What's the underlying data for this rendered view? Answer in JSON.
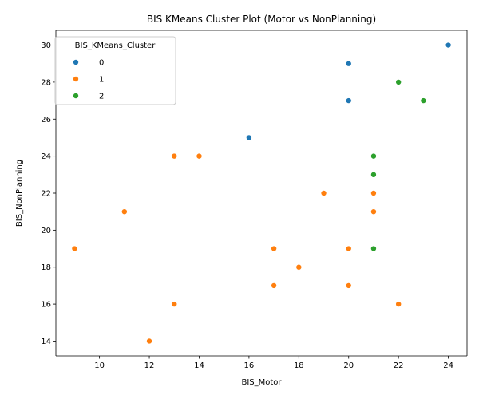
{
  "chart_data": {
    "type": "scatter",
    "title": "BIS KMeans Cluster Plot (Motor vs NonPlanning)",
    "xlabel": "BIS_Motor",
    "ylabel": "BIS_NonPlanning",
    "xlim": [
      8.25,
      24.75
    ],
    "ylim": [
      13.2,
      30.8
    ],
    "xticks": [
      10,
      12,
      14,
      16,
      18,
      20,
      22,
      24
    ],
    "yticks": [
      14,
      16,
      18,
      20,
      22,
      24,
      26,
      28,
      30
    ],
    "grid": false,
    "legend": {
      "title": "BIS_KMeans_Cluster",
      "placement": "top-left"
    },
    "series": [
      {
        "name": "0",
        "color": "#1f77b4",
        "points": [
          [
            24,
            30
          ],
          [
            20,
            29
          ],
          [
            20,
            27
          ],
          [
            16,
            25
          ]
        ]
      },
      {
        "name": "1",
        "color": "#ff7f0e",
        "points": [
          [
            13,
            24
          ],
          [
            14,
            24
          ],
          [
            19,
            22
          ],
          [
            21,
            22
          ],
          [
            11,
            21
          ],
          [
            21,
            21
          ],
          [
            9,
            19
          ],
          [
            17,
            19
          ],
          [
            20,
            19
          ],
          [
            18,
            18
          ],
          [
            17,
            17
          ],
          [
            20,
            17
          ],
          [
            13,
            16
          ],
          [
            22,
            16
          ],
          [
            12,
            14
          ]
        ]
      },
      {
        "name": "2",
        "color": "#2ca02c",
        "points": [
          [
            22,
            28
          ],
          [
            23,
            27
          ],
          [
            21,
            24
          ],
          [
            21,
            23
          ],
          [
            21,
            19
          ]
        ]
      }
    ]
  }
}
